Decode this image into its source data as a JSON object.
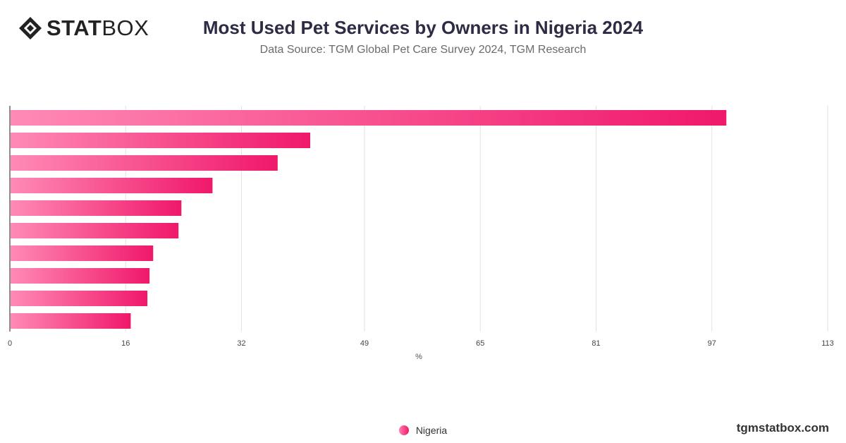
{
  "header": {
    "logo_bold": "STAT",
    "logo_light": "BOX",
    "title": "Most Used Pet Services by Owners in Nigeria 2024",
    "subtitle": "Data Source: TGM Global Pet Care Survey 2024, TGM Research"
  },
  "chart_data": {
    "type": "bar",
    "orientation": "horizontal",
    "title": "Most Used Pet Services by Owners in Nigeria 2024",
    "categories": [
      "",
      "",
      "",
      "",
      "",
      "",
      "",
      "",
      "",
      ""
    ],
    "series": [
      {
        "name": "Nigeria",
        "values": [
          99,
          41.5,
          37,
          28,
          23.7,
          23.3,
          19.8,
          19.3,
          19,
          16.7
        ]
      }
    ],
    "xlabel": "%",
    "xlim": [
      0,
      113
    ],
    "xticks": [
      "0",
      "16",
      "32",
      "49",
      "65",
      "81",
      "97",
      "113"
    ],
    "grid": true,
    "legend_position": "bottom-center",
    "colors": {
      "bar_start": "#ff8ab6",
      "bar_end": "#f0186a",
      "grid": "#e2e2e2",
      "axis": "#444444"
    }
  },
  "legend": {
    "label": "Nigeria"
  },
  "footer": {
    "site": "tgmstatbox.com"
  }
}
